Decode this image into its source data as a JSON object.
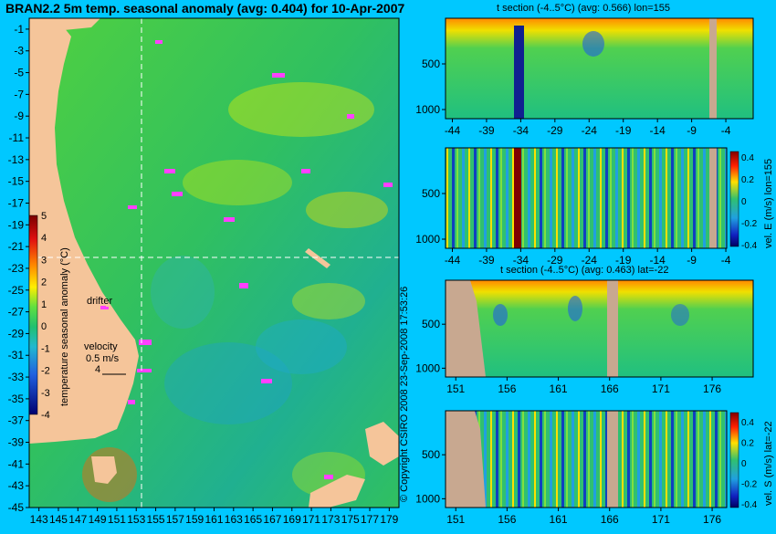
{
  "page": {
    "background": "#00c8ff"
  },
  "credit": "© Copyright CSIRO 2008   23-Sep-2008 17:53:26",
  "chart_data": [
    {
      "type": "heatmap",
      "title": "BRAN2.2 5m temp. seasonal anomaly (avg: 0.404) for 10-Apr-2007",
      "xticks": [
        "143",
        "145",
        "147",
        "149",
        "151",
        "153",
        "155",
        "157",
        "159",
        "161",
        "163",
        "165",
        "167",
        "169",
        "171",
        "173",
        "175",
        "177",
        "179"
      ],
      "yticks": [
        "-1",
        "-3",
        "-5",
        "-7",
        "-9",
        "-11",
        "-13",
        "-15",
        "-17",
        "-19",
        "-21",
        "-23",
        "-25",
        "-27",
        "-29",
        "-31",
        "-33",
        "-35",
        "-37",
        "-39",
        "-41",
        "-43",
        "-45"
      ],
      "xlim": [
        142,
        180
      ],
      "ylim": [
        -45,
        0
      ],
      "section_lon": 155,
      "section_lat": -22,
      "colorbar": {
        "label": "temperature seasonal anomaly (°C)",
        "ticks": [
          "5",
          "4",
          "3",
          "2",
          "1",
          "0",
          "-1",
          "-2",
          "-3",
          "-4"
        ],
        "range": [
          -4,
          5
        ]
      },
      "annotations": {
        "drifter": "drifter",
        "velocity": "velocity",
        "speed": "0.5 m/s",
        "speed2": "4"
      }
    },
    {
      "type": "heatmap",
      "title": "t section (-4..5°C) (avg: 0.566) lon=155",
      "xticks": [
        "-44",
        "-39",
        "-34",
        "-29",
        "-24",
        "-19",
        "-14",
        "-9",
        "-4"
      ],
      "yticks": [
        "500",
        "1000"
      ],
      "xlim": [
        -45,
        0
      ],
      "ylim": [
        1100,
        0
      ]
    },
    {
      "type": "heatmap",
      "title": "",
      "xticks": [
        "-44",
        "-39",
        "-34",
        "-29",
        "-24",
        "-19",
        "-14",
        "-9",
        "-4"
      ],
      "yticks": [
        "500",
        "1000"
      ],
      "xlim": [
        -45,
        0
      ],
      "ylim": [
        1100,
        0
      ],
      "colorbar": {
        "label": "vel. E (m/s) lon=155",
        "ticks": [
          "0.4",
          "0.2",
          "0",
          "-0.2",
          "-0.4"
        ],
        "range": [
          -0.4,
          0.4
        ]
      }
    },
    {
      "type": "heatmap",
      "title": "t section (-4..5°C) (avg: 0.463) lat=-22",
      "xticks": [
        "151",
        "156",
        "161",
        "166",
        "171",
        "176"
      ],
      "yticks": [
        "500",
        "1000"
      ],
      "xlim": [
        150,
        180
      ],
      "ylim": [
        1100,
        0
      ]
    },
    {
      "type": "heatmap",
      "title": "",
      "xticks": [
        "151",
        "156",
        "161",
        "166",
        "171",
        "176"
      ],
      "yticks": [
        "500",
        "1000"
      ],
      "xlim": [
        150,
        180
      ],
      "ylim": [
        1100,
        0
      ],
      "colorbar": {
        "label": "vel. S (m/s) lat=-22",
        "ticks": [
          "0.4",
          "0.2",
          "0",
          "-0.2",
          "-0.4"
        ],
        "range": [
          -0.4,
          0.4
        ]
      }
    }
  ]
}
